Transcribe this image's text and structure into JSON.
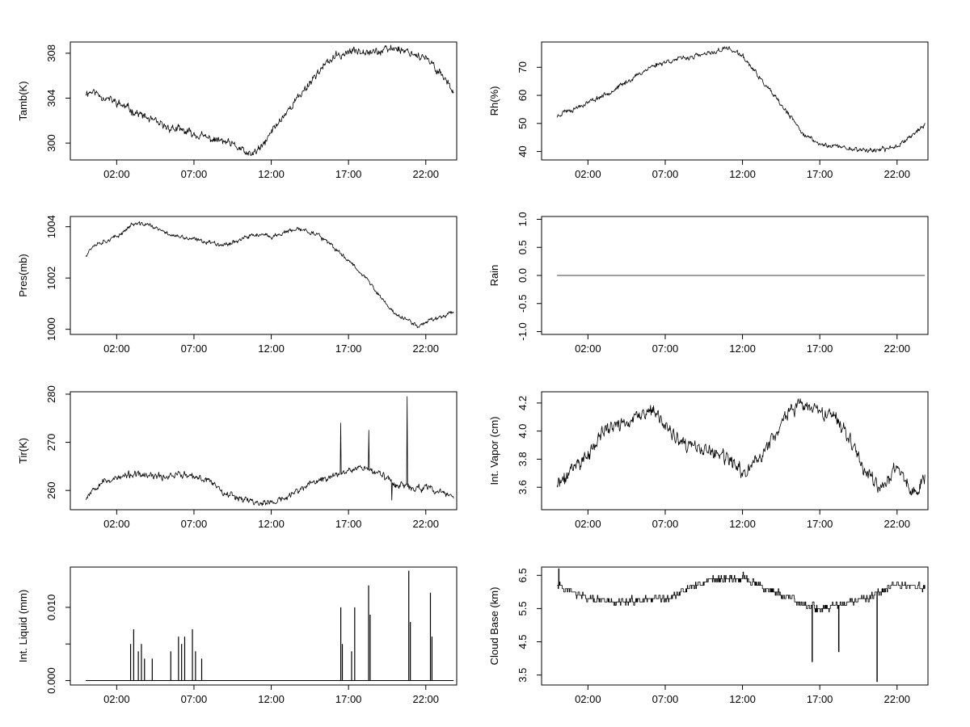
{
  "chart_data": [
    {
      "type": "line",
      "ylabel": "Tamb(K)",
      "xlim": [
        -1,
        24
      ],
      "x_ticks": [
        2,
        7,
        12,
        17,
        22
      ],
      "x_tick_labels": [
        "02:00",
        "07:00",
        "12:00",
        "17:00",
        "22:00"
      ],
      "ylim": [
        298.5,
        309
      ],
      "y_ticks": [
        300,
        304,
        308
      ],
      "y_tick_labels": [
        "300",
        "304",
        "308"
      ],
      "keypoints": [
        [
          0,
          304.5
        ],
        [
          0.5,
          304.6
        ],
        [
          1,
          304.2
        ],
        [
          2,
          303.6
        ],
        [
          3,
          302.9
        ],
        [
          4,
          302.2
        ],
        [
          5,
          301.5
        ],
        [
          6,
          301.2
        ],
        [
          7,
          300.8
        ],
        [
          8,
          300.4
        ],
        [
          9,
          300.1
        ],
        [
          10,
          299.5
        ],
        [
          10.5,
          298.9
        ],
        [
          11,
          299.2
        ],
        [
          11.5,
          299.8
        ],
        [
          12,
          301.0
        ],
        [
          13,
          302.8
        ],
        [
          14,
          304.5
        ],
        [
          15,
          306.3
        ],
        [
          16,
          307.6
        ],
        [
          17,
          308.1
        ],
        [
          18,
          308.3
        ],
        [
          19,
          308.1
        ],
        [
          20,
          308.5
        ],
        [
          21,
          308.1
        ],
        [
          22,
          307.5
        ],
        [
          23,
          306.2
        ],
        [
          23.8,
          304.6
        ]
      ],
      "noise": 0.25,
      "seed": 11,
      "style": "line"
    },
    {
      "type": "line",
      "ylabel": "Rh(%)",
      "xlim": [
        -1,
        24
      ],
      "x_ticks": [
        2,
        7,
        12,
        17,
        22
      ],
      "x_tick_labels": [
        "02:00",
        "07:00",
        "12:00",
        "17:00",
        "22:00"
      ],
      "ylim": [
        37,
        79
      ],
      "y_ticks": [
        40,
        50,
        60,
        70
      ],
      "y_tick_labels": [
        "40",
        "50",
        "60",
        "70"
      ],
      "keypoints": [
        [
          0,
          52.5
        ],
        [
          0.5,
          54.5
        ],
        [
          1,
          55
        ],
        [
          2,
          57.5
        ],
        [
          3,
          60
        ],
        [
          4,
          63
        ],
        [
          5,
          66.5
        ],
        [
          6,
          70
        ],
        [
          7,
          72
        ],
        [
          8,
          73
        ],
        [
          9,
          74
        ],
        [
          10,
          75
        ],
        [
          11,
          77
        ],
        [
          12,
          74
        ],
        [
          13,
          67
        ],
        [
          14,
          60
        ],
        [
          15,
          53
        ],
        [
          16,
          46
        ],
        [
          17,
          42.5
        ],
        [
          18,
          42
        ],
        [
          19,
          41
        ],
        [
          20,
          40.5
        ],
        [
          21,
          40.5
        ],
        [
          22,
          42
        ],
        [
          23,
          46
        ],
        [
          23.8,
          49.5
        ]
      ],
      "noise": 0.6,
      "seed": 23,
      "style": "line"
    },
    {
      "type": "line",
      "ylabel": "Pres(mb)",
      "xlim": [
        -1,
        24
      ],
      "x_ticks": [
        2,
        7,
        12,
        17,
        22
      ],
      "x_tick_labels": [
        "02:00",
        "07:00",
        "12:00",
        "17:00",
        "22:00"
      ],
      "ylim": [
        999.8,
        1004.4
      ],
      "y_ticks": [
        1000,
        1002,
        1004
      ],
      "y_tick_labels": [
        "1000",
        "1002",
        "1004"
      ],
      "keypoints": [
        [
          0,
          1002.9
        ],
        [
          0.5,
          1003.3
        ],
        [
          1,
          1003.4
        ],
        [
          2,
          1003.6
        ],
        [
          3,
          1004.1
        ],
        [
          4,
          1004.1
        ],
        [
          5,
          1003.8
        ],
        [
          6,
          1003.6
        ],
        [
          7,
          1003.5
        ],
        [
          8,
          1003.4
        ],
        [
          9,
          1003.3
        ],
        [
          10,
          1003.5
        ],
        [
          11,
          1003.7
        ],
        [
          12,
          1003.6
        ],
        [
          13,
          1003.8
        ],
        [
          14,
          1003.9
        ],
        [
          15,
          1003.7
        ],
        [
          16,
          1003.2
        ],
        [
          17,
          1002.7
        ],
        [
          18,
          1002.1
        ],
        [
          19,
          1001.3
        ],
        [
          20,
          1000.6
        ],
        [
          21,
          1000.3
        ],
        [
          21.5,
          1000.1
        ],
        [
          22,
          1000.3
        ],
        [
          23,
          1000.5
        ],
        [
          23.8,
          1000.7
        ]
      ],
      "noise": 0.06,
      "seed": 37,
      "style": "line"
    },
    {
      "type": "line",
      "ylabel": "Rain",
      "xlim": [
        -1,
        24
      ],
      "x_ticks": [
        2,
        7,
        12,
        17,
        22
      ],
      "x_tick_labels": [
        "02:00",
        "07:00",
        "12:00",
        "17:00",
        "22:00"
      ],
      "ylim": [
        -1.05,
        1.05
      ],
      "y_ticks": [
        -1.0,
        -0.5,
        0.0,
        0.5,
        1.0
      ],
      "y_tick_labels": [
        "-1.0",
        "-0.5",
        "0.0",
        "0.5",
        "1.0"
      ],
      "keypoints": [
        [
          0,
          0
        ],
        [
          23.8,
          0
        ]
      ],
      "noise": 0,
      "seed": 1,
      "style": "line"
    },
    {
      "type": "line",
      "ylabel": "Tir(K)",
      "xlim": [
        -1,
        24
      ],
      "x_ticks": [
        2,
        7,
        12,
        17,
        22
      ],
      "x_tick_labels": [
        "02:00",
        "07:00",
        "12:00",
        "17:00",
        "22:00"
      ],
      "ylim": [
        256,
        280.5
      ],
      "y_ticks": [
        260,
        270,
        280
      ],
      "y_tick_labels": [
        "260",
        "270",
        "280"
      ],
      "keypoints": [
        [
          0,
          258.5
        ],
        [
          0.5,
          260.5
        ],
        [
          1,
          261.8
        ],
        [
          2,
          262.5
        ],
        [
          3,
          263.3
        ],
        [
          4,
          263
        ],
        [
          5,
          262.8
        ],
        [
          6,
          263.5
        ],
        [
          7,
          262.6
        ],
        [
          8,
          262.2
        ],
        [
          9,
          259.5
        ],
        [
          10,
          258.5
        ],
        [
          11,
          257.5
        ],
        [
          12,
          257.4
        ],
        [
          13,
          258.5
        ],
        [
          14,
          260.5
        ],
        [
          15,
          262
        ],
        [
          16,
          263
        ],
        [
          17,
          264.5
        ],
        [
          18,
          264.8
        ],
        [
          19,
          263.5
        ],
        [
          20,
          261.5
        ],
        [
          21,
          260.5
        ],
        [
          22,
          260.5
        ],
        [
          23,
          259.5
        ],
        [
          23.8,
          259
        ]
      ],
      "noise": 0.5,
      "seed": 53,
      "spikes": [
        [
          16.5,
          274
        ],
        [
          18.3,
          272.5
        ],
        [
          20.8,
          279.5
        ],
        [
          19.8,
          258
        ]
      ],
      "style": "line"
    },
    {
      "type": "line",
      "ylabel": "Int. Vapor (cm)",
      "xlim": [
        -1,
        24
      ],
      "x_ticks": [
        2,
        7,
        12,
        17,
        22
      ],
      "x_tick_labels": [
        "02:00",
        "07:00",
        "12:00",
        "17:00",
        "22:00"
      ],
      "ylim": [
        3.44,
        4.28
      ],
      "y_ticks": [
        3.6,
        3.8,
        4.0,
        4.2
      ],
      "y_tick_labels": [
        "3.6",
        "3.8",
        "4.0",
        "4.2"
      ],
      "keypoints": [
        [
          0,
          3.62
        ],
        [
          0.5,
          3.65
        ],
        [
          1,
          3.75
        ],
        [
          2,
          3.82
        ],
        [
          3,
          4.0
        ],
        [
          4,
          4.05
        ],
        [
          5,
          4.08
        ],
        [
          6,
          4.15
        ],
        [
          7,
          4.05
        ],
        [
          8,
          3.9
        ],
        [
          9,
          3.88
        ],
        [
          10,
          3.85
        ],
        [
          11,
          3.8
        ],
        [
          12,
          3.7
        ],
        [
          13,
          3.8
        ],
        [
          14,
          3.95
        ],
        [
          15,
          4.15
        ],
        [
          16,
          4.18
        ],
        [
          17,
          4.12
        ],
        [
          18,
          4.1
        ],
        [
          19,
          3.95
        ],
        [
          20,
          3.7
        ],
        [
          21,
          3.6
        ],
        [
          22,
          3.75
        ],
        [
          23,
          3.55
        ],
        [
          23.8,
          3.68
        ]
      ],
      "noise": 0.035,
      "seed": 71,
      "style": "line"
    },
    {
      "type": "bar",
      "ylabel": "Int. Liquid (mm)",
      "xlim": [
        -1,
        24
      ],
      "x_ticks": [
        2,
        7,
        12,
        17,
        22
      ],
      "x_tick_labels": [
        "02:00",
        "07:00",
        "12:00",
        "17:00",
        "22:00"
      ],
      "ylim": [
        -0.0006,
        0.0155
      ],
      "y_ticks": [
        0.0,
        0.005,
        0.01
      ],
      "y_tick_labels": [
        "0.000",
        "",
        "0.010"
      ],
      "baseline": [
        [
          0,
          23.8
        ]
      ],
      "spikes": [
        [
          2.9,
          0.005
        ],
        [
          3.1,
          0.007
        ],
        [
          3.4,
          0.004
        ],
        [
          3.6,
          0.005
        ],
        [
          3.8,
          0.003
        ],
        [
          4.3,
          0.003
        ],
        [
          5.5,
          0.004
        ],
        [
          6.0,
          0.006
        ],
        [
          6.2,
          0.005
        ],
        [
          6.4,
          0.006
        ],
        [
          6.9,
          0.007
        ],
        [
          7.1,
          0.004
        ],
        [
          7.5,
          0.003
        ],
        [
          16.5,
          0.01
        ],
        [
          16.6,
          0.005
        ],
        [
          17.2,
          0.004
        ],
        [
          17.4,
          0.01
        ],
        [
          18.3,
          0.013
        ],
        [
          18.4,
          0.009
        ],
        [
          20.9,
          0.015
        ],
        [
          21.0,
          0.008
        ],
        [
          22.3,
          0.012
        ],
        [
          22.4,
          0.006
        ]
      ],
      "style": "spikes"
    },
    {
      "type": "line",
      "ylabel": "Cloud Base (km)",
      "xlim": [
        -1,
        24
      ],
      "x_ticks": [
        2,
        7,
        12,
        17,
        22
      ],
      "x_tick_labels": [
        "02:00",
        "07:00",
        "12:00",
        "17:00",
        "22:00"
      ],
      "ylim": [
        3.2,
        6.75
      ],
      "y_ticks": [
        3.5,
        4.5,
        5.5,
        6.5
      ],
      "y_tick_labels": [
        "3.5",
        "4.5",
        "5.5",
        "6.5"
      ],
      "keypoints": [
        [
          0,
          6.3
        ],
        [
          0.5,
          6.1
        ],
        [
          1,
          6.0
        ],
        [
          2,
          5.8
        ],
        [
          3,
          5.7
        ],
        [
          4,
          5.7
        ],
        [
          5,
          5.7
        ],
        [
          6,
          5.75
        ],
        [
          7,
          5.75
        ],
        [
          8,
          6.0
        ],
        [
          9,
          6.2
        ],
        [
          10,
          6.4
        ],
        [
          11,
          6.4
        ],
        [
          12,
          6.4
        ],
        [
          13,
          6.2
        ],
        [
          14,
          6.0
        ],
        [
          15,
          5.8
        ],
        [
          16,
          5.6
        ],
        [
          17,
          5.5
        ],
        [
          18,
          5.6
        ],
        [
          19,
          5.7
        ],
        [
          20,
          5.8
        ],
        [
          21,
          6.0
        ],
        [
          22,
          6.2
        ],
        [
          23,
          6.2
        ],
        [
          23.8,
          6.1
        ]
      ],
      "noise": 0.08,
      "seed": 97,
      "spikes": [
        [
          16.5,
          3.9
        ],
        [
          18.2,
          4.2
        ],
        [
          20.7,
          3.3
        ],
        [
          0.1,
          6.7
        ]
      ],
      "style": "step"
    }
  ]
}
